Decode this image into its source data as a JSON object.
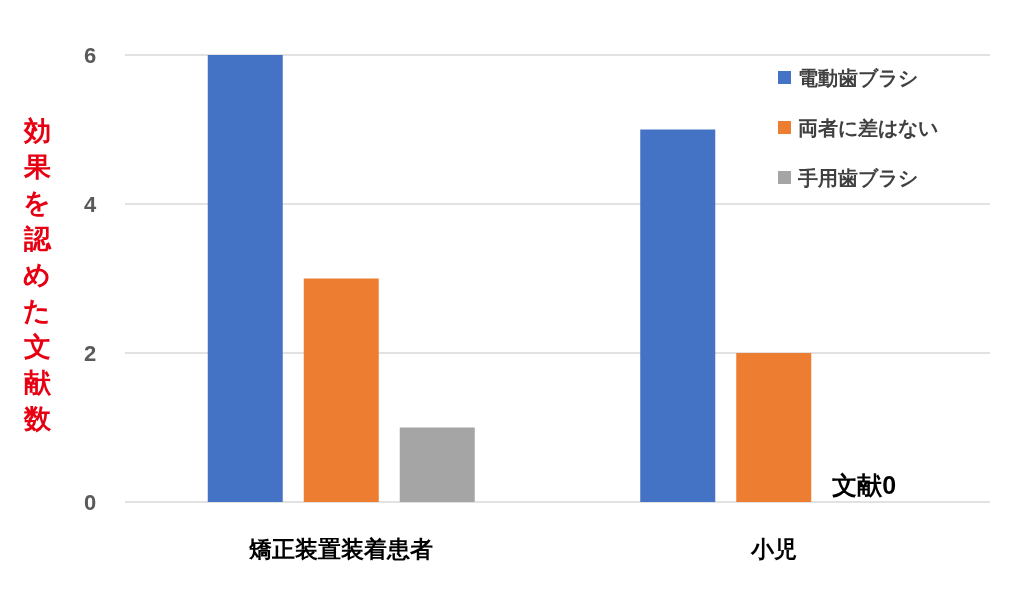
{
  "chart_data": {
    "type": "bar",
    "ylabel": "効果を認めた文献数",
    "categories": [
      "矯正装置装着患者",
      "小児"
    ],
    "series": [
      {
        "name": "電動歯ブラシ",
        "color": "#4472c4",
        "values": [
          6,
          5
        ]
      },
      {
        "name": "両者に差はない",
        "color": "#ed7d31",
        "values": [
          3,
          2
        ]
      },
      {
        "name": "手用歯ブラシ",
        "color": "#a5a5a5",
        "values": [
          1,
          0
        ]
      }
    ],
    "ylim": [
      0,
      6
    ],
    "yticks": [
      0,
      2,
      4,
      6
    ],
    "grid": "y",
    "legend": "top right",
    "annotations": [
      {
        "text": "文献0",
        "x": "小児",
        "y": 0
      }
    ]
  }
}
